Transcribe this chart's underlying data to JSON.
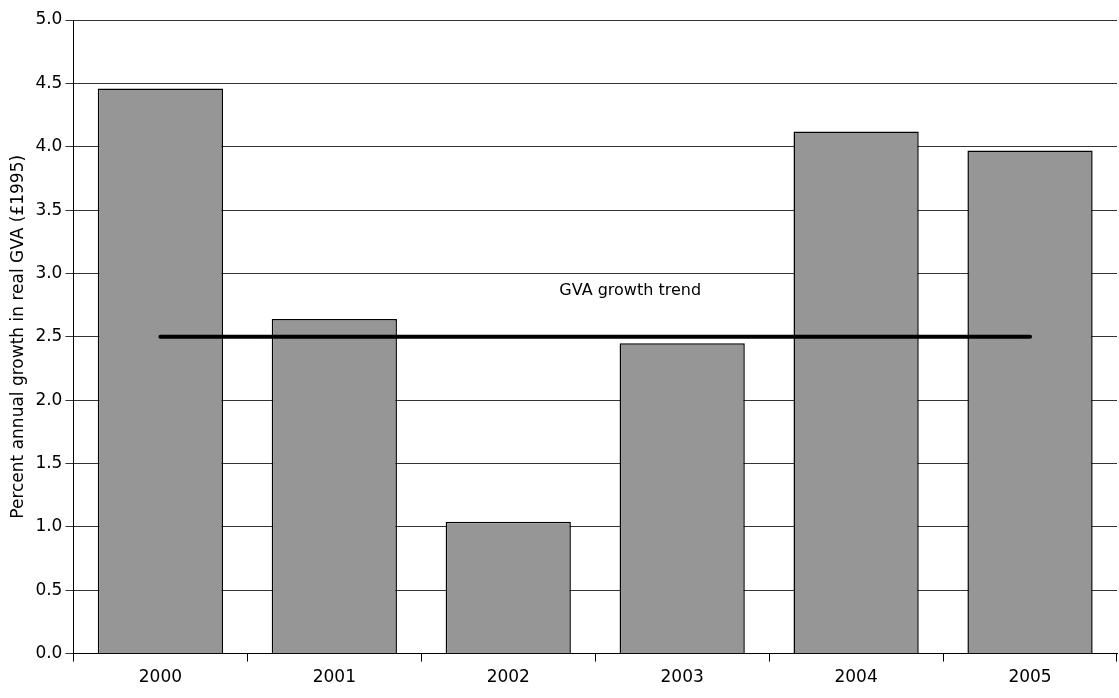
{
  "chart_data": {
    "type": "bar",
    "ylabel": "Percent annual growth in real GVA (£1995)",
    "categories": [
      "2000",
      "2001",
      "2002",
      "2003",
      "2004",
      "2005"
    ],
    "series": [
      {
        "color": "#969696",
        "values": [
          4.46,
          2.64,
          1.04,
          2.45,
          4.12,
          3.97
        ]
      },
      {
        "type": "line",
        "color": "#000000",
        "values": [
          2.5,
          2.5,
          2.5,
          2.5,
          2.5,
          2.5
        ]
      }
    ],
    "annotations": [
      "GVA growth trend"
    ],
    "ylim": [
      0,
      5
    ],
    "yticks": [
      {
        "value": 0,
        "label": "0.0"
      },
      {
        "value": 0.5,
        "label": "0.5"
      },
      {
        "value": 1,
        "label": "1.0"
      },
      {
        "value": 1.5,
        "label": "1.5"
      },
      {
        "value": 2,
        "label": "2.0"
      },
      {
        "value": 2.5,
        "label": "2.5"
      },
      {
        "value": 3,
        "label": "3.0"
      },
      {
        "value": 3.5,
        "label": "3.5"
      },
      {
        "value": 4,
        "label": "4.0"
      },
      {
        "value": 4.5,
        "label": "4.5"
      },
      {
        "value": 5,
        "label": "5.0"
      }
    ],
    "grid": "y",
    "legend": false
  }
}
